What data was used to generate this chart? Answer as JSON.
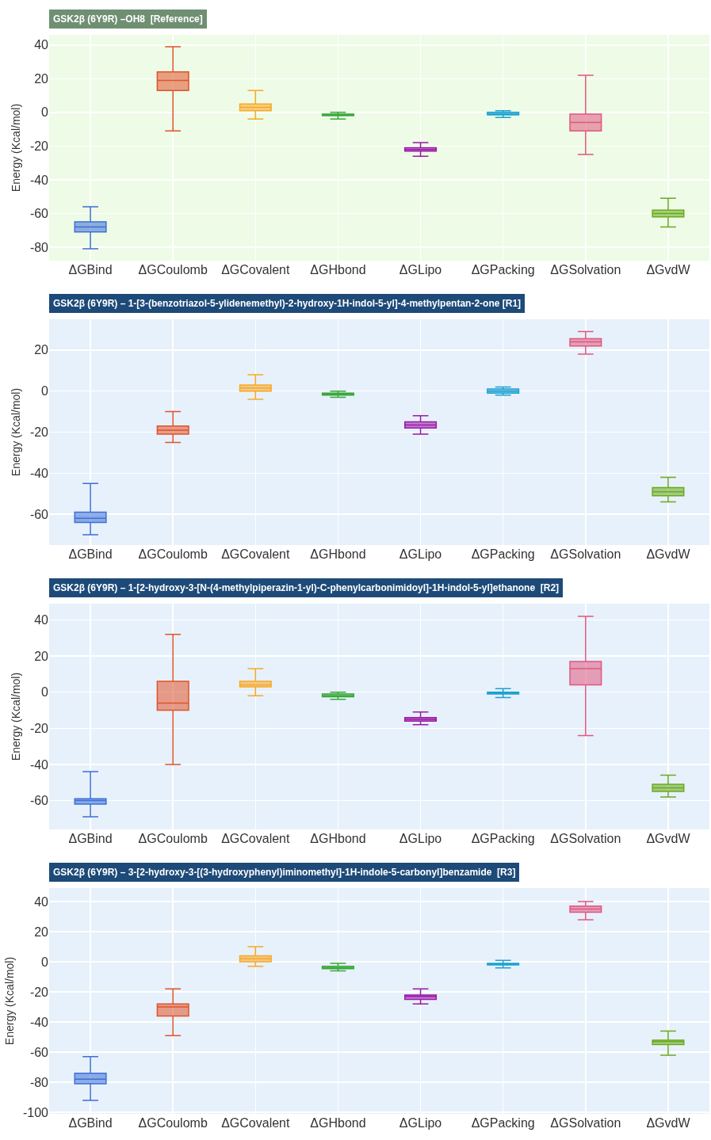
{
  "chart_data": [
    {
      "type": "box",
      "title": "GSK2β (6Y9R) –OH8  [Reference]",
      "ylabel": "Energy (Kcal/mol)",
      "categories": [
        "ΔGBind",
        "ΔGCoulomb",
        "ΔGCovalent",
        "ΔGHbond",
        "ΔGLipo",
        "ΔGPacking",
        "ΔGSolvation",
        "ΔGvdW"
      ],
      "colors": [
        "#3d6fd6",
        "#e0532a",
        "#f9a825",
        "#3aa83a",
        "#9c1aa6",
        "#1da1d0",
        "#e0577f",
        "#6aaa1e"
      ],
      "boxes": [
        {
          "low": -81,
          "q1": -71,
          "median": -68,
          "q3": -65,
          "high": -56
        },
        {
          "low": -11,
          "q1": 13,
          "median": 19,
          "q3": 24,
          "high": 39
        },
        {
          "low": -4,
          "q1": 1,
          "median": 3,
          "q3": 5,
          "high": 13
        },
        {
          "low": -4,
          "q1": -2,
          "median": -1.5,
          "q3": -1,
          "high": 0
        },
        {
          "low": -26,
          "q1": -23,
          "median": -22,
          "q3": -21,
          "high": -18
        },
        {
          "low": -3,
          "q1": -1.5,
          "median": -1,
          "q3": 0,
          "high": 1
        },
        {
          "low": -25,
          "q1": -11,
          "median": -6,
          "q3": -1,
          "high": 22
        },
        {
          "low": -68,
          "q1": -62,
          "median": -60,
          "q3": -58,
          "high": -51
        }
      ],
      "ylim": [
        -88,
        46
      ],
      "yticks": [
        -80,
        -60,
        -40,
        -20,
        0,
        20,
        40
      ],
      "grid": true
    },
    {
      "type": "box",
      "title": "GSK2β (6Y9R) – 1-[3-(benzotriazol-5-ylidenemethyl)-2-hydroxy-1H-indol-5-yl]-4-methylpentan-2-one [R1]",
      "ylabel": "Energy (Kcal/mol)",
      "categories": [
        "ΔGBind",
        "ΔGCoulomb",
        "ΔGCovalent",
        "ΔGHbond",
        "ΔGLipo",
        "ΔGPacking",
        "ΔGSolvation",
        "ΔGvdW"
      ],
      "colors": [
        "#3d6fd6",
        "#e0532a",
        "#f9a825",
        "#3aa83a",
        "#9c1aa6",
        "#1da1d0",
        "#e0577f",
        "#6aaa1e"
      ],
      "boxes": [
        {
          "low": -70,
          "q1": -64,
          "median": -62,
          "q3": -59,
          "high": -45
        },
        {
          "low": -25,
          "q1": -21,
          "median": -19,
          "q3": -17,
          "high": -10
        },
        {
          "low": -4,
          "q1": 0,
          "median": 1.5,
          "q3": 3,
          "high": 8
        },
        {
          "low": -3,
          "q1": -2,
          "median": -1.5,
          "q3": -1,
          "high": 0
        },
        {
          "low": -21,
          "q1": -18,
          "median": -16.5,
          "q3": -15,
          "high": -12
        },
        {
          "low": -2,
          "q1": -1,
          "median": 0,
          "q3": 1,
          "high": 2
        },
        {
          "low": 18,
          "q1": 22,
          "median": 24,
          "q3": 25.5,
          "high": 29
        },
        {
          "low": -54,
          "q1": -51,
          "median": -49,
          "q3": -47,
          "high": -42
        }
      ],
      "ylim": [
        -75,
        35
      ],
      "yticks": [
        -60,
        -40,
        -20,
        0,
        20
      ],
      "grid": true
    },
    {
      "type": "box",
      "title": "GSK2β (6Y9R) – 1-[2-hydroxy-3-[N-(4-methylpiperazin-1-yl)-C-phenylcarbonimidoyl]-1H-indol-5-yl]ethanone  [R2]",
      "ylabel": "Energy (Kcal/mol)",
      "categories": [
        "ΔGBind",
        "ΔGCoulomb",
        "ΔGCovalent",
        "ΔGHbond",
        "ΔGLipo",
        "ΔGPacking",
        "ΔGSolvation",
        "ΔGvdW"
      ],
      "colors": [
        "#3d6fd6",
        "#e0532a",
        "#f9a825",
        "#3aa83a",
        "#9c1aa6",
        "#1da1d0",
        "#e0577f",
        "#6aaa1e"
      ],
      "boxes": [
        {
          "low": -69,
          "q1": -62,
          "median": -60,
          "q3": -59,
          "high": -44
        },
        {
          "low": -40,
          "q1": -10,
          "median": -6,
          "q3": 6,
          "high": 32
        },
        {
          "low": -2,
          "q1": 3,
          "median": 4,
          "q3": 6,
          "high": 13
        },
        {
          "low": -4,
          "q1": -2.5,
          "median": -2,
          "q3": -1,
          "high": 0
        },
        {
          "low": -18,
          "q1": -16,
          "median": -15,
          "q3": -14,
          "high": -11
        },
        {
          "low": -3,
          "q1": -1,
          "median": -0.5,
          "q3": 0,
          "high": 2
        },
        {
          "low": -24,
          "q1": 4,
          "median": 13,
          "q3": 17,
          "high": 42
        },
        {
          "low": -58,
          "q1": -55,
          "median": -53,
          "q3": -51,
          "high": -46
        }
      ],
      "ylim": [
        -76,
        49
      ],
      "yticks": [
        -60,
        -40,
        -20,
        0,
        20,
        40
      ],
      "grid": true
    },
    {
      "type": "box",
      "title": "GSK2β (6Y9R) – 3-[2-hydroxy-3-[(3-hydroxyphenyl)iminomethyl]-1H-indole-5-carbonyl]benzamide  [R3]",
      "ylabel": "Energy (Kcal/mol)",
      "categories": [
        "ΔGBind",
        "ΔGCoulomb",
        "ΔGCovalent",
        "ΔGHbond",
        "ΔGLipo",
        "ΔGPacking",
        "ΔGSolvation",
        "ΔGvdW"
      ],
      "colors": [
        "#3d6fd6",
        "#e0532a",
        "#f9a825",
        "#3aa83a",
        "#9c1aa6",
        "#1da1d0",
        "#e0577f",
        "#6aaa1e"
      ],
      "boxes": [
        {
          "low": -92,
          "q1": -81,
          "median": -78,
          "q3": -74,
          "high": -63
        },
        {
          "low": -49,
          "q1": -36,
          "median": -30,
          "q3": -28,
          "high": -18
        },
        {
          "low": -3,
          "q1": 0,
          "median": 2,
          "q3": 4,
          "high": 10
        },
        {
          "low": -6,
          "q1": -4.5,
          "median": -4,
          "q3": -3,
          "high": -1
        },
        {
          "low": -28,
          "q1": -25,
          "median": -23,
          "q3": -22,
          "high": -18
        },
        {
          "low": -4,
          "q1": -2,
          "median": -1.5,
          "q3": -1,
          "high": 1
        },
        {
          "low": 28,
          "q1": 33,
          "median": 35,
          "q3": 37,
          "high": 40
        },
        {
          "low": -62,
          "q1": -55,
          "median": -53,
          "q3": -52,
          "high": -46
        }
      ],
      "ylim": [
        -101,
        49
      ],
      "yticks": [
        -100,
        -80,
        -60,
        -40,
        -20,
        0,
        20,
        40
      ],
      "grid": true
    }
  ]
}
